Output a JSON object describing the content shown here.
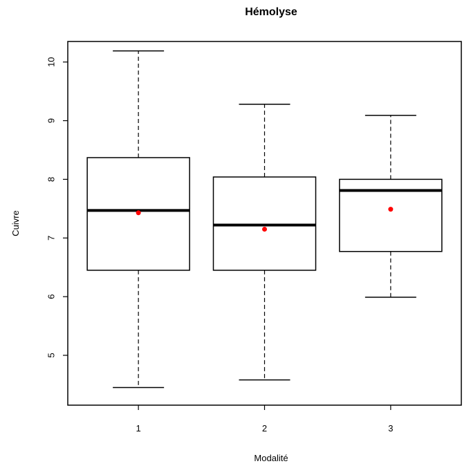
{
  "chart_data": {
    "type": "boxplot",
    "title": "Hémolyse",
    "xlabel": "Modalité",
    "ylabel": "Cuivre",
    "categories": [
      "1",
      "2",
      "3"
    ],
    "ylim": [
      4.15,
      10.35
    ],
    "yticks": [
      5,
      6,
      7,
      8,
      9,
      10
    ],
    "yticks_labels": [
      "5",
      "6",
      "7",
      "8",
      "9",
      "10"
    ],
    "grid": false,
    "legend": "none",
    "boxes": [
      {
        "category": "1",
        "whisker_low": 4.45,
        "q1": 6.45,
        "median": 7.47,
        "q3": 8.37,
        "whisker_high": 10.19,
        "mean": 7.43
      },
      {
        "category": "2",
        "whisker_low": 4.58,
        "q1": 6.45,
        "median": 7.22,
        "q3": 8.04,
        "whisker_high": 9.28,
        "mean": 7.15
      },
      {
        "category": "3",
        "whisker_low": 5.99,
        "q1": 6.77,
        "median": 7.81,
        "q3": 8.0,
        "whisker_high": 9.09,
        "mean": 7.49
      }
    ],
    "colors": {
      "box": "#000000",
      "mean_point": "#ff0000"
    }
  }
}
